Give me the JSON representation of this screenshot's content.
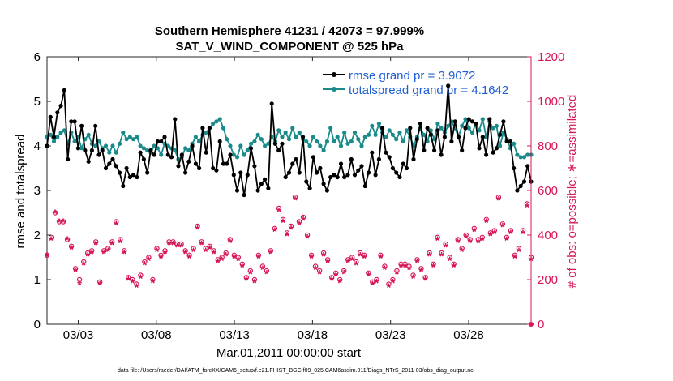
{
  "chart_data": {
    "type": "line",
    "title_line1": "Southern Hemisphere 41231 / 42073 = 97.999%",
    "title_line2": "SAT_V_WIND_COMPONENT @ 525 hPa",
    "xlabel": "Mar.01,2011 00:00:00 start",
    "ylabel_left": "rmse and totalspread",
    "ylabel_right": "# of obs: o=possible; ∗=assimilated",
    "footer": "data file: /Users/raeder/DAI/ATM_forcXX/CAM6_setup/f.e21.FHIST_BGC.f09_025.CAM6assim.011/Diags_NTrS_2011-03/obs_diag_output.nc",
    "x_tick_labels": [
      "03/03",
      "03/08",
      "03/13",
      "03/18",
      "03/23",
      "03/28"
    ],
    "x_tick_days": [
      3,
      8,
      13,
      18,
      23,
      28
    ],
    "x_range_days": [
      1.0,
      32.0
    ],
    "y_left_range": [
      0,
      6
    ],
    "y_left_ticks": [
      "0",
      "1",
      "2",
      "3",
      "4",
      "5",
      "6"
    ],
    "y_right_range": [
      0,
      1200
    ],
    "y_right_ticks": [
      "0",
      "200",
      "400",
      "600",
      "800",
      "1000",
      "1200"
    ],
    "legend": {
      "rmse_label": "rmse grand pr = 3.9072",
      "spread_label": "totalspread grand pr = 4.1642"
    },
    "colors": {
      "rmse": "#000000",
      "spread": "#1a8a8a",
      "obs": "#d6175a",
      "legend_text": "#1f5fd6",
      "axis": "#262626"
    },
    "series": [
      {
        "name": "rmse",
        "axis": "left",
        "values": [
          4.0,
          4.65,
          4.2,
          4.75,
          4.9,
          5.25,
          3.7,
          4.55,
          4.55,
          3.95,
          4.45,
          3.9,
          3.65,
          3.9,
          4.45,
          3.8,
          3.9,
          3.5,
          3.6,
          3.7,
          3.55,
          3.4,
          3.1,
          3.5,
          3.3,
          3.35,
          3.3,
          3.85,
          3.7,
          3.4,
          3.9,
          3.8,
          4.1,
          4.1,
          4.2,
          3.8,
          3.75,
          4.6,
          3.55,
          3.8,
          3.4,
          3.65,
          4.0,
          3.6,
          3.5,
          4.4,
          3.85,
          4.4,
          3.5,
          3.45,
          4.1,
          3.6,
          3.6,
          3.8,
          3.35,
          3.0,
          3.4,
          2.9,
          3.35,
          3.95,
          3.55,
          3.0,
          3.15,
          3.25,
          3.05,
          4.95,
          4.05,
          3.9,
          4.05,
          3.3,
          3.4,
          3.6,
          3.7,
          3.4,
          4.2,
          3.2,
          3.05,
          3.75,
          3.4,
          3.5,
          3.15,
          3.0,
          3.3,
          3.35,
          3.3,
          3.6,
          3.3,
          3.35,
          3.7,
          3.35,
          3.45,
          3.55,
          3.1,
          3.4,
          3.85,
          3.35,
          3.7,
          4.4,
          3.85,
          3.75,
          3.5,
          3.4,
          3.3,
          3.6,
          3.5,
          4.4,
          3.7,
          4.15,
          4.5,
          3.9,
          4.4,
          4.25,
          3.9,
          4.35,
          3.8,
          4.2,
          5.35,
          4.1,
          4.55,
          4.2,
          3.9,
          4.4,
          4.6,
          4.55,
          4.5,
          3.95,
          4.2,
          3.8,
          4.6,
          3.85,
          3.95,
          4.25,
          4.55,
          4.1,
          4.1,
          3.5,
          3.0,
          3.1,
          3.2,
          3.55,
          3.2
        ]
      },
      {
        "name": "totalspread",
        "axis": "left",
        "values": [
          4.2,
          4.25,
          4.1,
          4.2,
          4.3,
          4.35,
          4.05,
          4.3,
          4.1,
          4.2,
          3.95,
          4.15,
          4.25,
          4.05,
          4.0,
          4.1,
          3.95,
          4.0,
          3.85,
          4.0,
          3.85,
          4.05,
          4.3,
          4.15,
          4.2,
          4.15,
          4.2,
          4.0,
          3.95,
          3.9,
          3.85,
          4.0,
          3.95,
          3.8,
          4.05,
          4.0,
          3.95,
          3.9,
          3.7,
          3.75,
          3.95,
          3.9,
          4.05,
          4.2,
          4.1,
          4.25,
          4.3,
          4.4,
          4.5,
          4.55,
          4.6,
          4.4,
          4.15,
          4.0,
          3.8,
          3.75,
          4.0,
          3.8,
          3.9,
          4.05,
          4.1,
          4.25,
          4.15,
          4.0,
          4.05,
          4.2,
          4.1,
          4.35,
          4.2,
          4.3,
          4.15,
          4.4,
          4.2,
          4.3,
          4.15,
          4.1,
          4.0,
          4.2,
          4.1,
          4.0,
          3.9,
          4.1,
          4.4,
          4.1,
          4.2,
          4.0,
          4.3,
          4.05,
          4.1,
          4.3,
          4.15,
          4.0,
          4.2,
          4.25,
          4.45,
          4.25,
          4.5,
          4.3,
          4.2,
          4.35,
          4.25,
          4.15,
          4.3,
          4.1,
          4.35,
          4.2,
          4.0,
          4.2,
          4.4,
          4.25,
          4.1,
          4.35,
          4.15,
          4.5,
          4.4,
          4.3,
          4.45,
          4.55,
          4.4,
          4.2,
          4.45,
          4.6,
          4.4,
          4.3,
          4.5,
          4.35,
          4.6,
          4.2,
          4.55,
          4.4,
          4.45,
          4.0,
          4.3,
          4.15,
          3.95,
          4.05,
          3.8,
          3.75,
          3.75,
          3.8,
          3.8
        ]
      },
      {
        "name": "obs_possible",
        "axis": "right",
        "values": [
          310,
          390,
          500,
          460,
          460,
          380,
          350,
          250,
          200,
          280,
          320,
          330,
          370,
          190,
          330,
          340,
          370,
          460,
          380,
          330,
          210,
          200,
          180,
          220,
          280,
          300,
          200,
          340,
          310,
          330,
          370,
          370,
          360,
          360,
          330,
          310,
          340,
          440,
          370,
          340,
          350,
          330,
          290,
          300,
          320,
          380,
          310,
          300,
          270,
          210,
          240,
          200,
          310,
          260,
          240,
          330,
          430,
          520,
          470,
          410,
          440,
          570,
          460,
          480,
          400,
          310,
          260,
          240,
          320,
          290,
          210,
          230,
          200,
          240,
          290,
          300,
          280,
          320,
          310,
          230,
          190,
          200,
          310,
          260,
          180,
          200,
          240,
          270,
          270,
          260,
          220,
          290,
          250,
          210,
          320,
          270,
          390,
          320,
          360,
          300,
          270,
          380,
          340,
          400,
          380,
          430,
          380,
          390,
          470,
          410,
          420,
          570,
          450,
          390,
          420,
          310,
          340,
          420,
          540,
          300
        ]
      },
      {
        "name": "obs_assimilated",
        "axis": "right",
        "values": [
          310,
          380,
          500,
          460,
          460,
          380,
          340,
          240,
          180,
          270,
          310,
          320,
          360,
          180,
          320,
          330,
          360,
          450,
          370,
          320,
          200,
          190,
          170,
          210,
          270,
          290,
          190,
          330,
          300,
          320,
          360,
          360,
          350,
          350,
          320,
          300,
          330,
          430,
          360,
          330,
          340,
          320,
          280,
          290,
          310,
          370,
          300,
          290,
          260,
          200,
          230,
          190,
          300,
          250,
          230,
          320,
          420,
          510,
          460,
          400,
          430,
          560,
          450,
          470,
          390,
          300,
          250,
          230,
          310,
          280,
          200,
          220,
          190,
          230,
          280,
          290,
          270,
          310,
          300,
          220,
          180,
          190,
          300,
          250,
          170,
          190,
          230,
          260,
          260,
          250,
          210,
          280,
          240,
          200,
          310,
          260,
          380,
          310,
          350,
          290,
          260,
          370,
          330,
          390,
          370,
          420,
          370,
          380,
          460,
          400,
          410,
          560,
          440,
          380,
          410,
          300,
          330,
          410,
          530,
          290
        ]
      }
    ]
  }
}
